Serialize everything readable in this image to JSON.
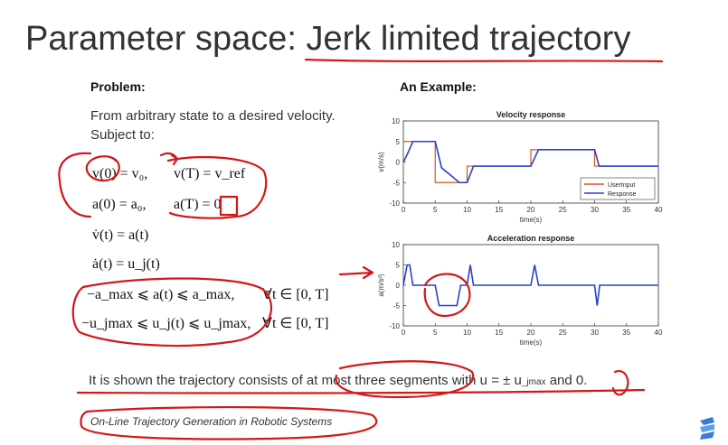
{
  "slide": {
    "title_prefix": "Parameter space: ",
    "title_emph": "Jerk limited trajectory"
  },
  "problem": {
    "heading": "Problem:",
    "line1": "From arbitrary state to a desired velocity.",
    "line2": "Subject to:"
  },
  "math": {
    "eq1a": "v(0) = v₀,",
    "eq1b": "v(T) = v_ref",
    "eq2a": "a(0) = a₀,",
    "eq2b": "a(T) = 0",
    "eq3": "v̇(t) = a(t)",
    "eq4": "ȧ(t) = u_j(t)",
    "eq5": "−a_max ⩽ a(t) ⩽ a_max,",
    "eq5b": "∀t ∈ [0, T]",
    "eq6": "−u_jmax ⩽ u_j(t) ⩽ u_jmax,",
    "eq6b": "∀t ∈ [0, T]"
  },
  "example": {
    "heading": "An Example:"
  },
  "bottom": {
    "text_a": "It is shown the trajectory consists of at most three segments with u = ± u",
    "text_sub": "_jmax",
    "text_b": " and 0."
  },
  "reference": "On-Line Trajectory Generation in Robotic Systems",
  "colors": {
    "userinput": "#d9541a",
    "response": "#2a3fd0",
    "ink": "#d21818"
  },
  "chart_data": [
    {
      "type": "line",
      "title": "Velocity response",
      "xlabel": "time(s)",
      "ylabel": "v(m/s)",
      "xlim": [
        0,
        40
      ],
      "ylim": [
        -10,
        10
      ],
      "xticks": [
        0,
        5,
        10,
        15,
        20,
        25,
        30,
        35,
        40
      ],
      "yticks": [
        -10,
        -5,
        0,
        5,
        10
      ],
      "legend": "bottom-right",
      "series": [
        {
          "name": "UserInput",
          "x": [
            0,
            5,
            5,
            10,
            10,
            20,
            20,
            30,
            30,
            40
          ],
          "y": [
            5,
            5,
            -5,
            -5,
            -1,
            -1,
            3,
            3,
            -1,
            -1
          ]
        },
        {
          "name": "Response",
          "x": [
            0,
            0.6,
            1.5,
            5.0,
            6.0,
            8.8,
            10.0,
            11.0,
            20.0,
            21.2,
            30.0,
            30.7,
            40
          ],
          "y": [
            0,
            1.8,
            5,
            5,
            -1.4,
            -5,
            -5,
            -1,
            -1,
            3,
            3,
            -1,
            -1
          ]
        }
      ]
    },
    {
      "type": "line",
      "title": "Acceleration response",
      "xlabel": "time(s)",
      "ylabel": "a(m/s²)",
      "xlim": [
        0,
        40
      ],
      "ylim": [
        -10,
        10
      ],
      "xticks": [
        0,
        5,
        10,
        15,
        20,
        25,
        30,
        35,
        40
      ],
      "yticks": [
        -10,
        -5,
        0,
        5,
        10
      ],
      "series": [
        {
          "name": "Response",
          "x": [
            0,
            0.6,
            1.0,
            1.5,
            5.0,
            5.6,
            8.4,
            9.0,
            10.0,
            10.5,
            11.0,
            20.0,
            20.6,
            21.2,
            30.0,
            30.4,
            30.8,
            40
          ],
          "y": [
            0,
            5,
            5,
            0,
            0,
            -5,
            -5,
            0,
            0,
            5,
            0,
            0,
            5,
            0,
            0,
            -5,
            0,
            0
          ]
        }
      ]
    }
  ]
}
